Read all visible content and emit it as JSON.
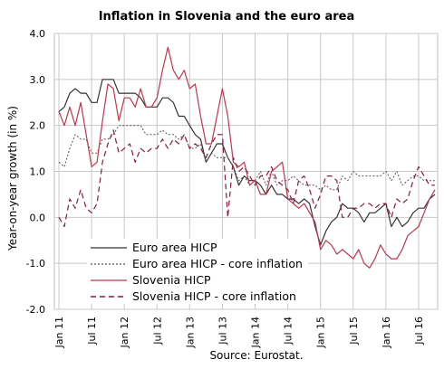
{
  "chart_data": {
    "type": "line",
    "title": "Inflation in Slovenia and the euro area",
    "ylabel": "Year-on-year growth (in %)",
    "xlabel": "",
    "source": "Source: Eurostat.",
    "ylim": [
      -2.0,
      4.0
    ],
    "yticks": [
      "4.0",
      "3.0",
      "2.0",
      "1.0",
      "0.0",
      "-1.0",
      "-2.0"
    ],
    "ytick_values": [
      4,
      3,
      2,
      1,
      0,
      -1,
      -2
    ],
    "xticks": [
      "Jan 11",
      "Jul 11",
      "Jan 12",
      "Jul 12",
      "Jan 13",
      "Jul 13",
      "Jan 14",
      "Jul 14",
      "Jan 15",
      "Jul 15",
      "Jan 16",
      "Jul 16"
    ],
    "grid": true,
    "legend_position": "bottom-left",
    "x": [
      "Jan 11",
      "Feb 11",
      "Mar 11",
      "Apr 11",
      "May 11",
      "Jun 11",
      "Jul 11",
      "Aug 11",
      "Sep 11",
      "Oct 11",
      "Nov 11",
      "Dec 11",
      "Jan 12",
      "Feb 12",
      "Mar 12",
      "Apr 12",
      "May 12",
      "Jun 12",
      "Jul 12",
      "Aug 12",
      "Sep 12",
      "Oct 12",
      "Nov 12",
      "Dec 12",
      "Jan 13",
      "Feb 13",
      "Mar 13",
      "Apr 13",
      "May 13",
      "Jun 13",
      "Jul 13",
      "Aug 13",
      "Sep 13",
      "Oct 13",
      "Nov 13",
      "Dec 13",
      "Jan 14",
      "Feb 14",
      "Mar 14",
      "Apr 14",
      "May 14",
      "Jun 14",
      "Jul 14",
      "Aug 14",
      "Sep 14",
      "Oct 14",
      "Nov 14",
      "Dec 14",
      "Jan 15",
      "Feb 15",
      "Mar 15",
      "Apr 15",
      "May 15",
      "Jun 15",
      "Jul 15",
      "Aug 15",
      "Sep 15",
      "Oct 15",
      "Nov 15",
      "Dec 15",
      "Jan 16",
      "Feb 16",
      "Mar 16",
      "Apr 16",
      "May 16",
      "Jun 16",
      "Jul 16",
      "Aug 16",
      "Sep 16",
      "Oct 16"
    ],
    "series": [
      {
        "name": "Euro area HICP",
        "color": "#333333",
        "dash": "solid",
        "values": [
          2.3,
          2.4,
          2.7,
          2.8,
          2.7,
          2.7,
          2.5,
          2.5,
          3.0,
          3.0,
          3.0,
          2.7,
          2.7,
          2.7,
          2.7,
          2.6,
          2.4,
          2.4,
          2.4,
          2.6,
          2.6,
          2.5,
          2.2,
          2.2,
          2.0,
          1.8,
          1.7,
          1.2,
          1.4,
          1.6,
          1.6,
          1.3,
          1.1,
          0.7,
          0.9,
          0.8,
          0.8,
          0.7,
          0.5,
          0.7,
          0.5,
          0.5,
          0.4,
          0.4,
          0.3,
          0.4,
          0.3,
          -0.2,
          -0.6,
          -0.3,
          -0.1,
          0.0,
          0.3,
          0.2,
          0.2,
          0.1,
          -0.1,
          0.1,
          0.1,
          0.2,
          0.3,
          -0.2,
          0.0,
          -0.2,
          -0.1,
          0.1,
          0.2,
          0.2,
          0.4,
          0.5
        ]
      },
      {
        "name": "Euro area HICP - core inflation",
        "color": "#555555",
        "dash": "dotted",
        "values": [
          1.2,
          1.1,
          1.5,
          1.8,
          1.7,
          1.7,
          1.4,
          1.4,
          1.7,
          1.7,
          1.8,
          2.0,
          2.0,
          2.0,
          2.0,
          2.0,
          1.8,
          1.8,
          1.8,
          1.9,
          1.8,
          1.8,
          1.7,
          1.8,
          1.5,
          1.5,
          1.6,
          1.2,
          1.4,
          1.3,
          1.3,
          1.3,
          1.1,
          0.8,
          0.9,
          0.7,
          0.8,
          1.0,
          0.7,
          1.0,
          0.7,
          0.8,
          0.8,
          0.9,
          0.8,
          0.7,
          0.7,
          0.7,
          0.6,
          0.7,
          0.6,
          0.6,
          0.9,
          0.8,
          1.0,
          0.9,
          0.9,
          0.9,
          0.9,
          0.9,
          1.0,
          0.8,
          1.0,
          0.7,
          0.8,
          0.9,
          0.9,
          0.8,
          0.8,
          0.8
        ]
      },
      {
        "name": "Slovenia HICP",
        "color": "#c0364f",
        "dash": "solid",
        "values": [
          2.3,
          2.0,
          2.4,
          2.0,
          2.5,
          1.8,
          1.1,
          1.2,
          2.1,
          2.9,
          2.8,
          2.1,
          2.6,
          2.6,
          2.4,
          2.8,
          2.4,
          2.4,
          2.6,
          3.2,
          3.7,
          3.2,
          3.0,
          3.2,
          2.8,
          2.9,
          2.2,
          1.6,
          1.6,
          2.2,
          2.8,
          2.2,
          1.2,
          1.1,
          1.2,
          0.7,
          0.8,
          0.5,
          0.5,
          1.0,
          1.1,
          1.2,
          0.4,
          0.3,
          0.2,
          0.3,
          0.1,
          -0.1,
          -0.7,
          -0.5,
          -0.6,
          -0.8,
          -0.7,
          -0.8,
          -0.9,
          -0.7,
          -1.0,
          -1.1,
          -0.9,
          -0.6,
          -0.8,
          -0.9,
          -0.9,
          -0.7,
          -0.4,
          -0.3,
          -0.2,
          0.1,
          0.4,
          0.6
        ]
      },
      {
        "name": "Slovenia HICP - core inflation",
        "color": "#8b1a3a",
        "dash": "dashed",
        "values": [
          0.0,
          -0.2,
          0.4,
          0.2,
          0.6,
          0.2,
          0.1,
          0.3,
          1.2,
          1.6,
          1.9,
          1.4,
          1.5,
          1.6,
          1.2,
          1.5,
          1.4,
          1.5,
          1.5,
          1.7,
          1.5,
          1.7,
          1.6,
          1.8,
          1.5,
          1.6,
          1.5,
          1.3,
          1.6,
          1.8,
          1.8,
          0.0,
          1.3,
          1.0,
          1.1,
          0.9,
          0.7,
          0.9,
          0.9,
          1.1,
          0.8,
          0.7,
          0.6,
          0.3,
          0.8,
          0.9,
          0.6,
          0.2,
          0.5,
          0.9,
          0.9,
          0.8,
          0.0,
          0.0,
          0.2,
          0.2,
          0.3,
          0.3,
          0.2,
          0.3,
          0.3,
          0.0,
          0.4,
          0.3,
          0.4,
          0.8,
          1.1,
          0.9,
          0.7,
          0.7
        ]
      }
    ]
  }
}
